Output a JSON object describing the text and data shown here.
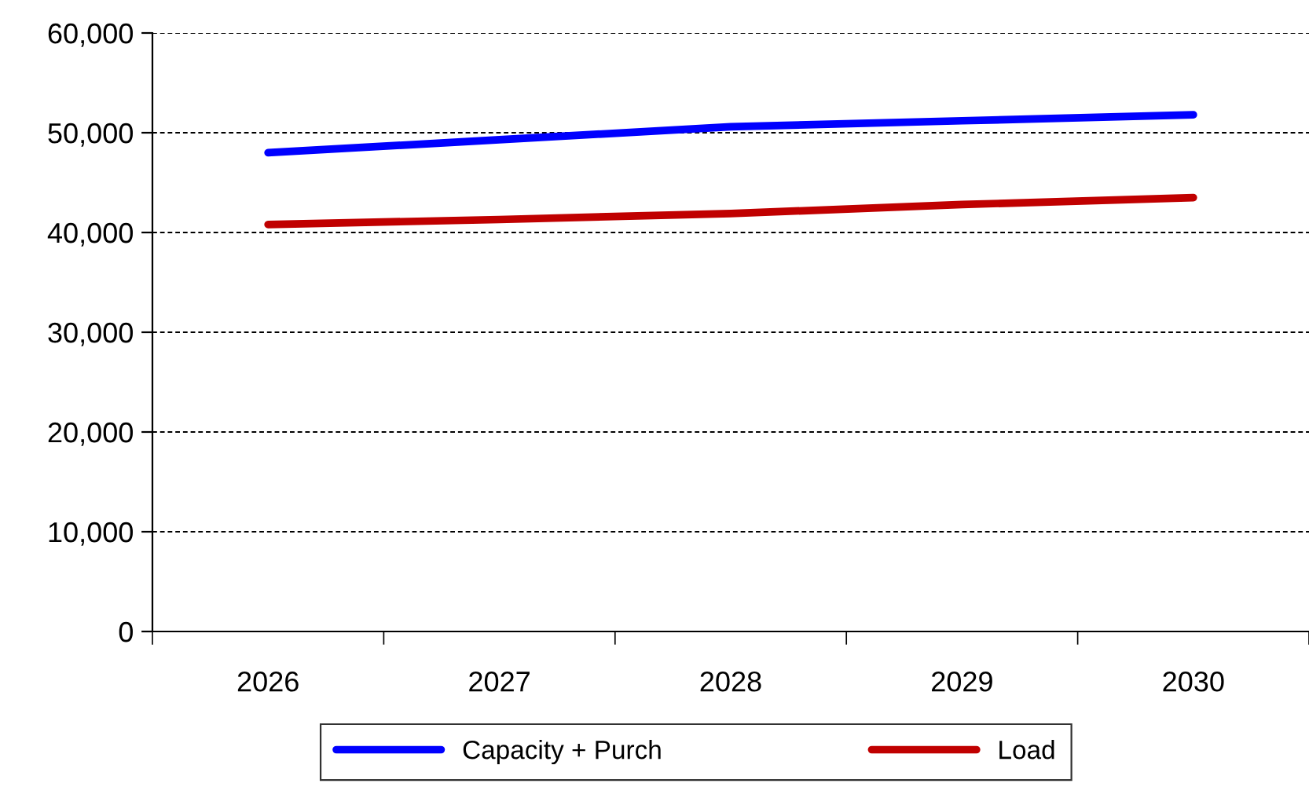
{
  "chart_data": {
    "type": "line",
    "categories": [
      "2026",
      "2027",
      "2028",
      "2029",
      "2030"
    ],
    "series": [
      {
        "name": "Capacity + Purch",
        "color": "#0000ff",
        "values": [
          48000,
          49300,
          50600,
          51200,
          51800
        ]
      },
      {
        "name": "Load",
        "color": "#c00000",
        "values": [
          40800,
          41300,
          41900,
          42800,
          43500
        ]
      }
    ],
    "ylim": [
      0,
      60000
    ],
    "yticks": [
      {
        "value": 0,
        "label": "0"
      },
      {
        "value": 10000,
        "label": "10,000"
      },
      {
        "value": 20000,
        "label": "20,000"
      },
      {
        "value": 30000,
        "label": "30,000"
      },
      {
        "value": 40000,
        "label": "40,000"
      },
      {
        "value": 50000,
        "label": "50,000"
      },
      {
        "value": 60000,
        "label": "60,000"
      }
    ],
    "grid": "y",
    "legend": "bottom",
    "line_style": "solid",
    "marker": "none"
  }
}
